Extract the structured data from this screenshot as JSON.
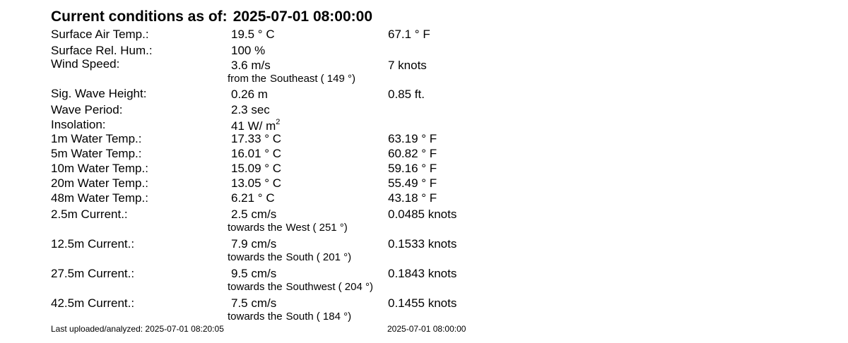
{
  "header": {
    "label": "Current conditions as of:",
    "timestamp": "2025-07-01 08:00:00"
  },
  "air": {
    "temp_label": "Surface Air Temp.:",
    "temp_c": "19.5 ° C",
    "temp_f": "67.1 ° F",
    "hum_label": "Surface Rel. Hum.:",
    "hum": "100 %"
  },
  "wind": {
    "label": "Wind Speed:",
    "ms": "3.6 m/s",
    "knots": "7 knots",
    "dir_prefix": "from the",
    "dir_name": "Southeast",
    "dir_deg": "( 149 °)"
  },
  "waves": {
    "height_label": "Sig. Wave Height:",
    "height_m": "0.26 m",
    "height_ft": "0.85 ft.",
    "period_label": "Wave Period:",
    "period": "2.3 sec"
  },
  "insolation": {
    "label": "Insolation:",
    "value": "41 W/ m",
    "exp": "2"
  },
  "water_temps": [
    {
      "label": "1m Water Temp.:",
      "c": "17.33 ° C",
      "f": "63.19 ° F"
    },
    {
      "label": "5m Water Temp.:",
      "c": "16.01 ° C",
      "f": "60.82 ° F"
    },
    {
      "label": "10m Water Temp.:",
      "c": "15.09 ° C",
      "f": "59.16 ° F"
    },
    {
      "label": "20m Water Temp.:",
      "c": "13.05 ° C",
      "f": "55.49 ° F"
    },
    {
      "label": "48m Water Temp.:",
      "c": "6.21 ° C",
      "f": "43.18 ° F"
    }
  ],
  "currents": [
    {
      "label": "2.5m Current.:",
      "cms": "2.5 cm/s",
      "knots": "0.0485 knots",
      "dir_prefix": "towards the",
      "dir_name": "West",
      "dir_deg": "( 251 °)"
    },
    {
      "label": "12.5m Current.:",
      "cms": "7.9 cm/s",
      "knots": "0.1533 knots",
      "dir_prefix": "towards the",
      "dir_name": "South",
      "dir_deg": "( 201 °)"
    },
    {
      "label": "27.5m Current.:",
      "cms": "9.5 cm/s",
      "knots": "0.1843 knots",
      "dir_prefix": "towards the",
      "dir_name": "Southwest",
      "dir_deg": "( 204 °)"
    },
    {
      "label": "42.5m Current.:",
      "cms": "7.5 cm/s",
      "knots": "0.1455 knots",
      "dir_prefix": "towards the",
      "dir_name": "South",
      "dir_deg": "( 184 °)"
    }
  ],
  "footer": {
    "left": "Last uploaded/analyzed: 2025-07-01 08:20:05",
    "right": "2025-07-01 08:00:00"
  }
}
